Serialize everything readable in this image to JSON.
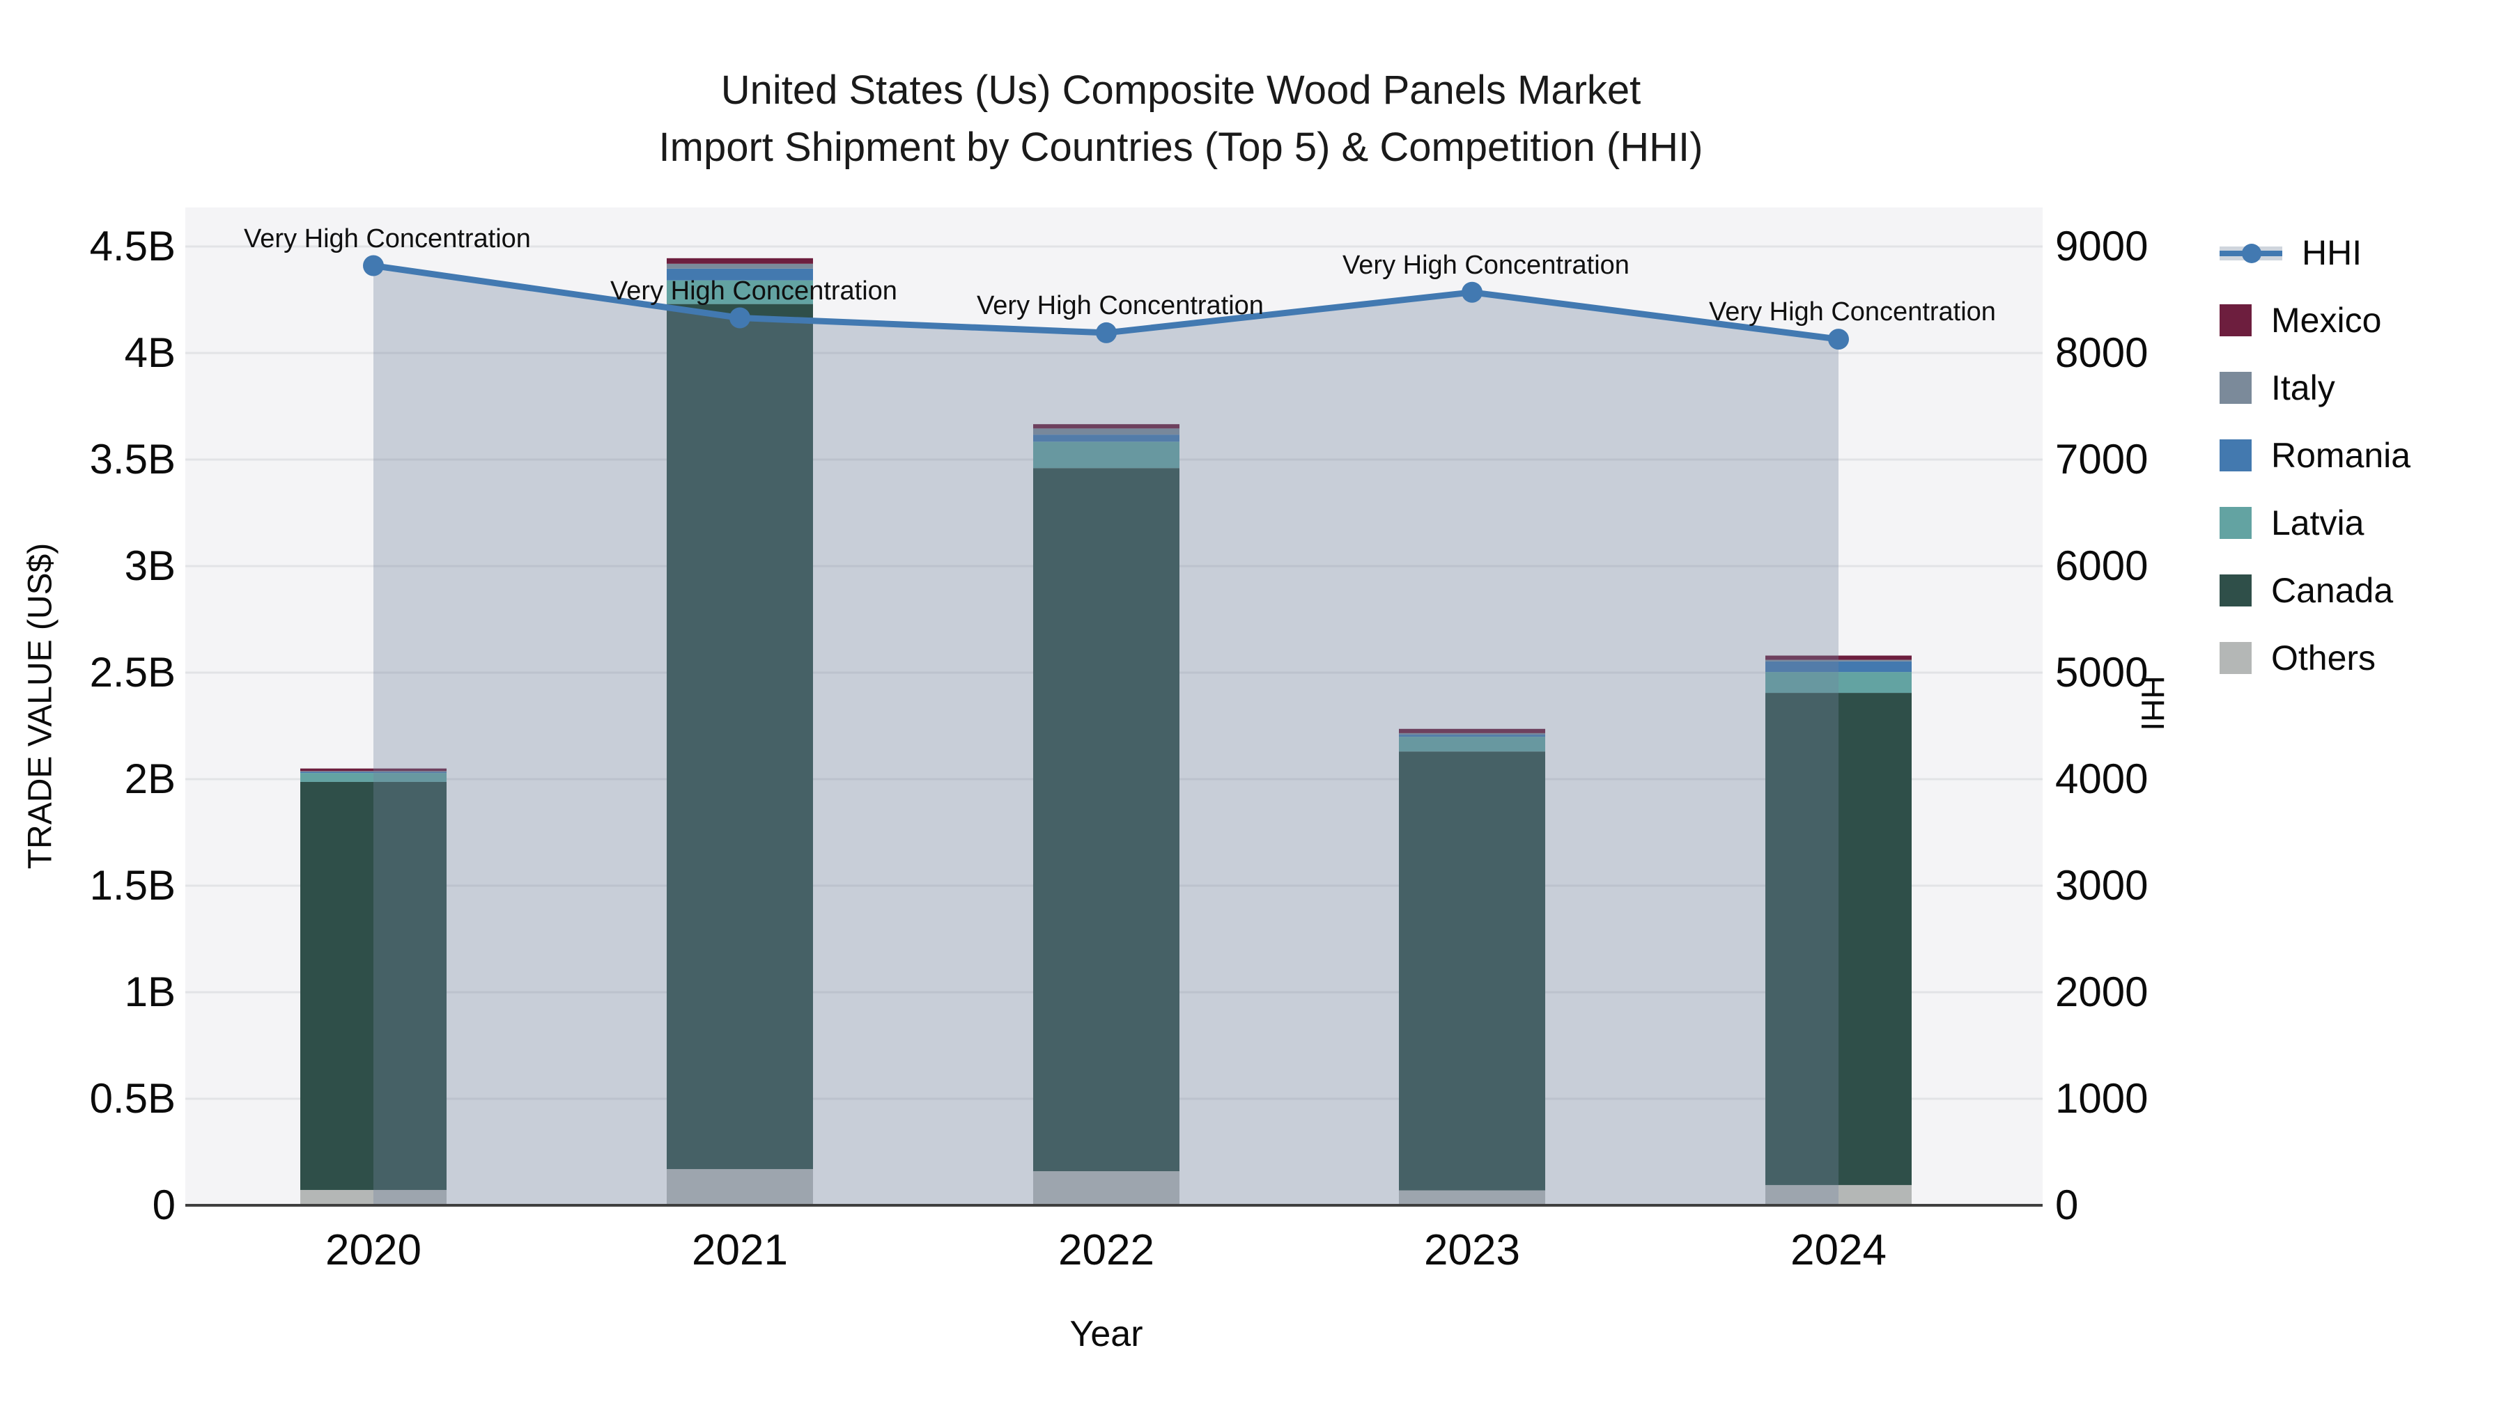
{
  "title": {
    "line1": "United States (Us) Composite Wood Panels Market",
    "line2": "Import Shipment by Countries (Top 5) & Competition (HHI)"
  },
  "axes": {
    "left": {
      "title": "TRADE VALUE (US$)",
      "ticks": [
        "0",
        "0.5B",
        "1B",
        "1.5B",
        "2B",
        "2.5B",
        "3B",
        "3.5B",
        "4B",
        "4.5B"
      ]
    },
    "right": {
      "title": "HHI",
      "ticks": [
        "0",
        "1000",
        "2000",
        "3000",
        "4000",
        "5000",
        "6000",
        "7000",
        "8000",
        "9000"
      ]
    },
    "x": {
      "title": "Year"
    }
  },
  "legend": {
    "items": [
      {
        "label": "HHI",
        "type": "line",
        "color": "#4279b1"
      },
      {
        "label": "Mexico",
        "type": "box",
        "color": "#6d1e3e"
      },
      {
        "label": "Italy",
        "type": "box",
        "color": "#7b8a9a"
      },
      {
        "label": "Romania",
        "type": "box",
        "color": "#4379af"
      },
      {
        "label": "Latvia",
        "type": "box",
        "color": "#63a3a2"
      },
      {
        "label": "Canada",
        "type": "box",
        "color": "#2f4f49"
      },
      {
        "label": "Others",
        "type": "box",
        "color": "#b4b7b6"
      }
    ]
  },
  "chart_data": {
    "type": "bar+line",
    "subtype": "stacked bars (trade value, left axis) with HHI line+area overlay (right axis)",
    "title": "United States (Us) Composite Wood Panels Market Import Shipment by Countries (Top 5) & Competition (HHI)",
    "xlabel": "Year",
    "ylabel": "TRADE VALUE (US$)",
    "y2label": "HHI",
    "value_unit": "billions of US$",
    "ylim": [
      0,
      4.5
    ],
    "y2lim": [
      0,
      9000
    ],
    "grid": true,
    "legend_position": "right",
    "categories": [
      "2020",
      "2021",
      "2022",
      "2023",
      "2024"
    ],
    "stack_order_bottom_to_top": [
      "Others",
      "Canada",
      "Latvia",
      "Romania",
      "Italy",
      "Mexico"
    ],
    "series": [
      {
        "name": "Mexico",
        "color": "#6d1e3e",
        "values": [
          0.012,
          0.026,
          0.02,
          0.02,
          0.02
        ]
      },
      {
        "name": "Italy",
        "color": "#7b8a9a",
        "values": [
          0.004,
          0.023,
          0.029,
          0.007,
          0.007
        ]
      },
      {
        "name": "Romania",
        "color": "#4379af",
        "values": [
          0.005,
          0.055,
          0.033,
          0.01,
          0.05
        ]
      },
      {
        "name": "Latvia",
        "color": "#63a3a2",
        "values": [
          0.042,
          0.111,
          0.124,
          0.069,
          0.098
        ]
      },
      {
        "name": "Canada",
        "color": "#2f4f49",
        "values": [
          1.915,
          4.06,
          3.3,
          2.06,
          2.31
        ]
      },
      {
        "name": "Others",
        "color": "#b4b7b6",
        "values": [
          0.072,
          0.17,
          0.16,
          0.07,
          0.095
        ]
      }
    ],
    "bar_totals_approx": [
      2.05,
      4.45,
      3.67,
      2.24,
      2.58
    ],
    "line_series": {
      "name": "HHI",
      "color": "#4279b1",
      "area_fill": "rgba(113,131,157,0.34)",
      "values": [
        8820,
        8330,
        8190,
        8570,
        8130
      ]
    },
    "annotations": [
      "Very High Concentration",
      "Very High Concentration",
      "Very High Concentration",
      "Very High Concentration",
      "Very High Concentration"
    ]
  }
}
